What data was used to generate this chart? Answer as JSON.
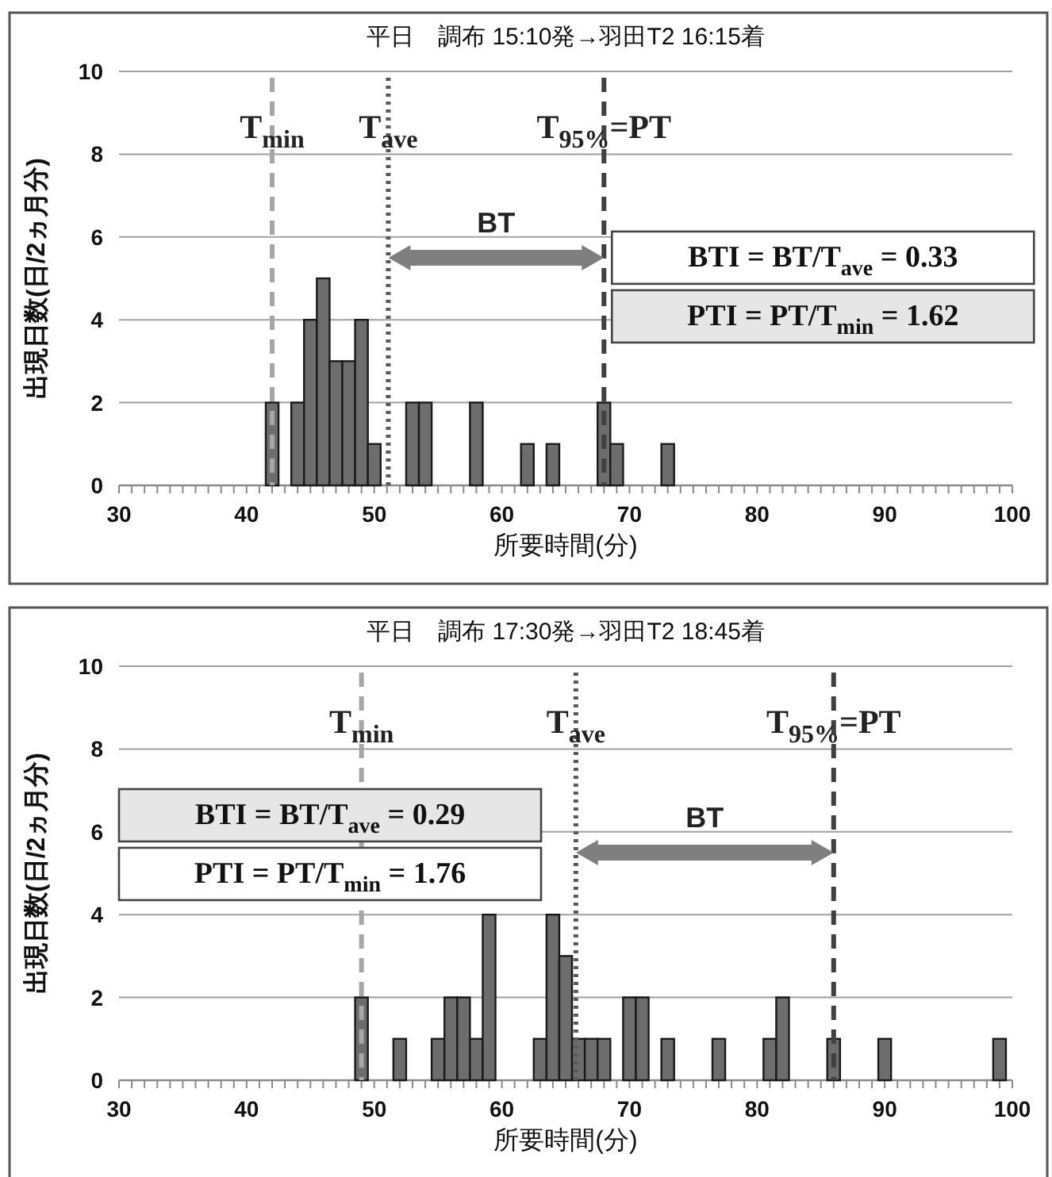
{
  "chart_data": [
    {
      "type": "histogram",
      "title": "平日　調布 15:10発→羽田T2 16:15着",
      "xlabel": "所要時間(分)",
      "ylabel": "出現日数(日/2ヵ月分)",
      "bins": [
        41.5,
        42.5,
        43.5,
        44.5,
        45.5,
        46.5,
        47.5,
        48.5,
        49.5,
        50.5,
        51.5,
        52.5,
        53.5,
        54.5,
        55.5,
        56.5,
        57.5,
        58.5,
        59.5,
        60.5,
        61.5,
        62.5,
        63.5,
        64.5,
        65.5,
        66.5,
        67.5,
        68.5,
        69.5,
        70.5,
        71.5,
        72.5,
        73.5
      ],
      "values": [
        2,
        0,
        2,
        4,
        5,
        3,
        3,
        4,
        1,
        0,
        0,
        2,
        2,
        0,
        0,
        0,
        2,
        0,
        0,
        0,
        1,
        0,
        1,
        0,
        0,
        0,
        2,
        1,
        0,
        0,
        0,
        1
      ],
      "color": "#6d6d6d",
      "xlim": [
        30,
        100
      ],
      "xticks": [
        30,
        {
          "value": 31,
          "label": null
        },
        {
          "value": 32,
          "label": null
        },
        {
          "value": 33,
          "label": null
        },
        {
          "value": 34,
          "label": null
        },
        {
          "value": 35,
          "label": null
        },
        {
          "value": 36,
          "label": null
        },
        {
          "value": 37,
          "label": null
        },
        {
          "value": 38,
          "label": null
        },
        {
          "value": 39,
          "label": null
        },
        40,
        {
          "value": 41,
          "label": null
        },
        {
          "value": 42,
          "label": null
        },
        {
          "value": 43,
          "label": null
        },
        {
          "value": 44,
          "label": null
        },
        {
          "value": 45,
          "label": null
        },
        {
          "value": 46,
          "label": null
        },
        {
          "value": 47,
          "label": null
        },
        {
          "value": 48,
          "label": null
        },
        {
          "value": 49,
          "label": null
        },
        50,
        {
          "value": 51,
          "label": null
        },
        {
          "value": 52,
          "label": null
        },
        {
          "value": 53,
          "label": null
        },
        {
          "value": 54,
          "label": null
        },
        {
          "value": 55,
          "label": null
        },
        {
          "value": 56,
          "label": null
        },
        {
          "value": 57,
          "label": null
        },
        {
          "value": 58,
          "label": null
        },
        {
          "value": 59,
          "label": null
        },
        60,
        {
          "value": 61,
          "label": null
        },
        {
          "value": 62,
          "label": null
        },
        {
          "value": 63,
          "label": null
        },
        {
          "value": 64,
          "label": null
        },
        {
          "value": 65,
          "label": null
        },
        {
          "value": 66,
          "label": null
        },
        {
          "value": 67,
          "label": null
        },
        {
          "value": 68,
          "label": null
        },
        {
          "value": 69,
          "label": null
        },
        70,
        {
          "value": 71,
          "label": null
        },
        {
          "value": 72,
          "label": null
        },
        {
          "value": 73,
          "label": null
        },
        {
          "value": 74,
          "label": null
        },
        {
          "value": 75,
          "label": null
        },
        {
          "value": 76,
          "label": null
        },
        {
          "value": 77,
          "label": null
        },
        {
          "value": 78,
          "label": null
        },
        {
          "value": 79,
          "label": null
        },
        80,
        {
          "value": 81,
          "label": null
        },
        {
          "value": 82,
          "label": null
        },
        {
          "value": 83,
          "label": null
        },
        {
          "value": 84,
          "label": null
        },
        {
          "value": 85,
          "label": null
        },
        {
          "value": 86,
          "label": null
        },
        {
          "value": 87,
          "label": null
        },
        {
          "value": 88,
          "label": null
        },
        {
          "value": 89,
          "label": null
        },
        90,
        {
          "value": 91,
          "label": null
        },
        {
          "value": 92,
          "label": null
        },
        {
          "value": 93,
          "label": null
        },
        {
          "value": 94,
          "label": null
        },
        {
          "value": 95,
          "label": null
        },
        {
          "value": 96,
          "label": null
        },
        {
          "value": 97,
          "label": null
        },
        {
          "value": 98,
          "label": null
        },
        {
          "value": 99,
          "label": null
        },
        100
      ],
      "ylim": [
        0,
        10
      ],
      "yticks": [
        0,
        2,
        4,
        6,
        8,
        10
      ],
      "grid": "y",
      "ref_lines": [
        {
          "axis": "x",
          "value": 42,
          "label": "T$_{min}$",
          "color": "#a6a6a6",
          "line_style": "dashed"
        },
        {
          "axis": "x",
          "value": 51.1,
          "label": "T$_{ave}$",
          "color": "#595959",
          "line_style": "dotted"
        },
        {
          "axis": "x",
          "value": 68,
          "label": "T$_{95%}$=PT",
          "color": "#404040",
          "line_style": "dashed"
        }
      ],
      "annotations": [
        "BT",
        "BTI = BT/T$_{ave}$ = 0.33",
        "PTI = PT/T$_{min}$ = 1.62"
      ]
    },
    {
      "type": "histogram",
      "title": "平日　調布 17:30発→羽田T2 18:45着",
      "xlabel": "所要時間(分)",
      "ylabel": "出現日数(日/2ヵ月分)",
      "bins": [
        48.5,
        49.5,
        50.5,
        51.5,
        52.5,
        53.5,
        54.5,
        55.5,
        56.5,
        57.5,
        58.5,
        59.5,
        60.5,
        61.5,
        62.5,
        63.5,
        64.5,
        65.5,
        66.5,
        67.5,
        68.5,
        69.5,
        70.5,
        71.5,
        72.5,
        73.5,
        74.5,
        75.5,
        76.5,
        77.5,
        78.5,
        79.5,
        80.5,
        81.5,
        82.5,
        83.5,
        84.5,
        85.5,
        86.5,
        87.5,
        88.5,
        89.5,
        90.5,
        91.5,
        92.5,
        93.5,
        94.5,
        95.5,
        96.5,
        97.5,
        98.5,
        99.5
      ],
      "values": [
        2,
        0,
        0,
        1,
        0,
        0,
        1,
        2,
        2,
        1,
        4,
        0,
        0,
        0,
        1,
        4,
        3,
        1,
        1,
        1,
        0,
        2,
        2,
        0,
        1,
        0,
        0,
        0,
        1,
        0,
        0,
        0,
        1,
        2,
        0,
        0,
        0,
        1,
        0,
        0,
        0,
        1,
        0,
        0,
        0,
        0,
        0,
        0,
        0,
        0,
        1
      ],
      "color": "#6d6d6d",
      "xlim": [
        30,
        100
      ],
      "xticks": [
        30,
        {
          "value": 31,
          "label": null
        },
        {
          "value": 32,
          "label": null
        },
        {
          "value": 33,
          "label": null
        },
        {
          "value": 34,
          "label": null
        },
        {
          "value": 35,
          "label": null
        },
        {
          "value": 36,
          "label": null
        },
        {
          "value": 37,
          "label": null
        },
        {
          "value": 38,
          "label": null
        },
        {
          "value": 39,
          "label": null
        },
        40,
        {
          "value": 41,
          "label": null
        },
        {
          "value": 42,
          "label": null
        },
        {
          "value": 43,
          "label": null
        },
        {
          "value": 44,
          "label": null
        },
        {
          "value": 45,
          "label": null
        },
        {
          "value": 46,
          "label": null
        },
        {
          "value": 47,
          "label": null
        },
        {
          "value": 48,
          "label": null
        },
        {
          "value": 49,
          "label": null
        },
        50,
        {
          "value": 51,
          "label": null
        },
        {
          "value": 52,
          "label": null
        },
        {
          "value": 53,
          "label": null
        },
        {
          "value": 54,
          "label": null
        },
        {
          "value": 55,
          "label": null
        },
        {
          "value": 56,
          "label": null
        },
        {
          "value": 57,
          "label": null
        },
        {
          "value": 58,
          "label": null
        },
        {
          "value": 59,
          "label": null
        },
        60,
        {
          "value": 61,
          "label": null
        },
        {
          "value": 62,
          "label": null
        },
        {
          "value": 63,
          "label": null
        },
        {
          "value": 64,
          "label": null
        },
        {
          "value": 65,
          "label": null
        },
        {
          "value": 66,
          "label": null
        },
        {
          "value": 67,
          "label": null
        },
        {
          "value": 68,
          "label": null
        },
        {
          "value": 69,
          "label": null
        },
        70,
        {
          "value": 71,
          "label": null
        },
        {
          "value": 72,
          "label": null
        },
        {
          "value": 73,
          "label": null
        },
        {
          "value": 74,
          "label": null
        },
        {
          "value": 75,
          "label": null
        },
        {
          "value": 76,
          "label": null
        },
        {
          "value": 77,
          "label": null
        },
        {
          "value": 78,
          "label": null
        },
        {
          "value": 79,
          "label": null
        },
        80,
        {
          "value": 81,
          "label": null
        },
        {
          "value": 82,
          "label": null
        },
        {
          "value": 83,
          "label": null
        },
        {
          "value": 84,
          "label": null
        },
        {
          "value": 85,
          "label": null
        },
        {
          "value": 86,
          "label": null
        },
        {
          "value": 87,
          "label": null
        },
        {
          "value": 88,
          "label": null
        },
        {
          "value": 89,
          "label": null
        },
        90,
        {
          "value": 91,
          "label": null
        },
        {
          "value": 92,
          "label": null
        },
        {
          "value": 93,
          "label": null
        },
        {
          "value": 94,
          "label": null
        },
        {
          "value": 95,
          "label": null
        },
        {
          "value": 96,
          "label": null
        },
        {
          "value": 97,
          "label": null
        },
        {
          "value": 98,
          "label": null
        },
        {
          "value": 99,
          "label": null
        },
        100
      ],
      "ylim": [
        0,
        10
      ],
      "yticks": [
        0,
        2,
        4,
        6,
        8,
        10
      ],
      "grid": "y",
      "ref_lines": [
        {
          "axis": "x",
          "value": 49,
          "label": "T$_{min}$",
          "color": "#a6a6a6",
          "line_style": "dashed"
        },
        {
          "axis": "x",
          "value": 65.8,
          "label": "T$_{ave}$",
          "color": "#595959",
          "line_style": "dotted"
        },
        {
          "axis": "x",
          "value": 86,
          "label": "T$_{95%}$=PT",
          "color": "#404040",
          "line_style": "dashed"
        }
      ],
      "annotations": [
        "BT",
        "BTI = BT/T$_{ave}$ = 0.29",
        "PTI = PT/T$_{min}$ = 1.76"
      ]
    }
  ]
}
